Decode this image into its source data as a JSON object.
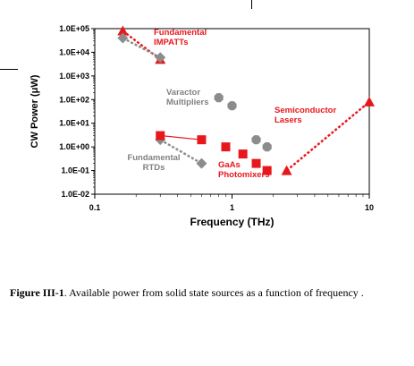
{
  "chart_data": {
    "type": "scatter",
    "title": "",
    "xlabel": "Frequency (THz)",
    "ylabel": "CW Power (μW)",
    "xscale": "log",
    "yscale": "log",
    "xlim": [
      0.1,
      10
    ],
    "ylim": [
      0.01,
      100000
    ],
    "x_ticks": [
      "0.1",
      "1",
      "10"
    ],
    "y_ticks": [
      "1.0E-02",
      "1.0E-01",
      "1.0E+00",
      "1.0E+01",
      "1.0E+02",
      "1.0E+03",
      "1.0E+04",
      "1.0E+05"
    ],
    "grid": false,
    "series": [
      {
        "name": "Fundamental IMPATTs",
        "marker": "triangle",
        "color": "#e8171c",
        "line": "dashed",
        "x": [
          0.16,
          0.3
        ],
        "y": [
          80000,
          5000
        ]
      },
      {
        "name": "Fundamental IMPATTs",
        "marker": "diamond",
        "color": "#8c8c8c",
        "line": "dashed",
        "x": [
          0.16,
          0.3
        ],
        "y": [
          40000,
          6000
        ]
      },
      {
        "name": "Varactor Multipliers",
        "marker": "circle",
        "color": "#8c8c8c",
        "line": "none",
        "x": [
          0.8,
          1.0
        ],
        "y": [
          120,
          55
        ]
      },
      {
        "name": "Fundamental RTDs",
        "marker": "diamond",
        "color": "#8c8c8c",
        "line": "dashed",
        "x": [
          0.3,
          0.6
        ],
        "y": [
          2,
          0.2
        ]
      },
      {
        "name": "GaAs Photomixers",
        "marker": "square",
        "color": "#e8171c",
        "line": "solid",
        "x": [
          0.3,
          0.6
        ],
        "y": [
          3,
          2
        ]
      },
      {
        "name": "GaAs Photomixers",
        "marker": "square",
        "color": "#e8171c",
        "line": "none",
        "x": [
          0.9,
          1.2,
          1.5,
          1.8
        ],
        "y": [
          1,
          0.5,
          0.2,
          0.1
        ]
      },
      {
        "name": "",
        "marker": "circle",
        "color": "#8c8c8c",
        "line": "none",
        "x": [
          1.5,
          1.8
        ],
        "y": [
          2,
          1
        ]
      },
      {
        "name": "Semiconductor Lasers",
        "marker": "triangle",
        "color": "#e8171c",
        "line": "dashed",
        "x": [
          2.5,
          10
        ],
        "y": [
          0.1,
          80
        ]
      }
    ],
    "annotations": [
      {
        "lines": [
          "Fundamental",
          "IMPATTs"
        ],
        "color": "#e8171c"
      },
      {
        "lines": [
          "Varactor",
          "Multipliers"
        ],
        "color": "#808080"
      },
      {
        "lines": [
          "Semiconductor",
          "Lasers"
        ],
        "color": "#e8171c"
      },
      {
        "lines": [
          "Fundamental",
          "RTDs"
        ],
        "color": "#808080"
      },
      {
        "lines": [
          "GaAs",
          "Photomixers"
        ],
        "color": "#e8171c"
      }
    ]
  },
  "caption": {
    "label": "Figure III-1",
    "text": ".  Available power from solid state sources as a function of frequency ."
  }
}
